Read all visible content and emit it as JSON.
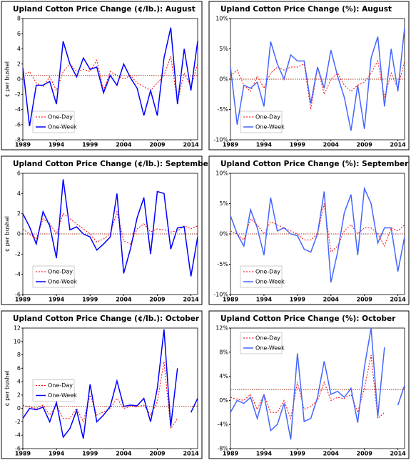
{
  "chart_data": [
    {
      "type": "line",
      "title": "Upland Cotton Price Change (¢/lb.): August",
      "y_label": "¢ per bushel",
      "x": [
        1989,
        1990,
        1991,
        1992,
        1993,
        1994,
        1995,
        1996,
        1997,
        1998,
        1999,
        2000,
        2001,
        2002,
        2003,
        2004,
        2005,
        2006,
        2007,
        2008,
        2009,
        2010,
        2011,
        2012,
        2013,
        2014,
        2015
      ],
      "xlim": [
        1989,
        2015
      ],
      "xticks": [
        1989,
        1994,
        1999,
        2004,
        2009,
        2014
      ],
      "ylim": [
        -8,
        8
      ],
      "yticks": [
        -8,
        -6,
        -4,
        -2,
        0,
        2,
        4,
        6,
        8
      ],
      "reference_line": 0.5,
      "legend": "lower left",
      "series": [
        {
          "name": "One-Day",
          "color": "#ff0000",
          "values": [
            0.5,
            1,
            -0.5,
            -1,
            0.3,
            -1.5,
            1,
            2,
            1,
            1.3,
            1,
            2.5,
            -1.5,
            1,
            0.5,
            0,
            0.5,
            -0.5,
            -1,
            -1.5,
            -0.5,
            0.5,
            3,
            -3,
            0.8,
            -1,
            2
          ]
        },
        {
          "name": "One-Week",
          "color": "#0000ff",
          "values": [
            1.5,
            -6.2,
            -0.8,
            -0.8,
            -0.3,
            -3.3,
            5,
            2,
            0.3,
            2.8,
            1.3,
            1.6,
            -1.8,
            0.5,
            -0.8,
            2,
            0.2,
            -1.2,
            -4.8,
            -1.5,
            -4.8,
            2.8,
            6.8,
            -3.3,
            4,
            -1.5,
            5
          ]
        }
      ]
    },
    {
      "type": "line",
      "title": "Upland Cotton Price Change (%): August",
      "x": [
        1989,
        1990,
        1991,
        1992,
        1993,
        1994,
        1995,
        1996,
        1997,
        1998,
        1999,
        2000,
        2001,
        2002,
        2003,
        2004,
        2005,
        2006,
        2007,
        2008,
        2009,
        2010,
        2011,
        2012,
        2013,
        2014,
        2015
      ],
      "xlim": [
        1989,
        2015
      ],
      "xticks": [
        1989,
        1994,
        1999,
        2004,
        2009,
        2014
      ],
      "ylim": [
        -10,
        10
      ],
      "yticks": [
        {
          "value": -10,
          "label": "-10%"
        },
        {
          "value": -5,
          "label": "-5%"
        },
        {
          "value": 0,
          "label": "0%"
        },
        {
          "value": 5,
          "label": "5%"
        },
        {
          "value": 10,
          "label": "10%"
        }
      ],
      "reference_line": 0,
      "legend": "lower left",
      "series": [
        {
          "name": "One-Day",
          "color": "#ff0000",
          "values": [
            0.5,
            1.5,
            -1,
            -2,
            0.5,
            -1.5,
            1,
            2,
            1.5,
            2,
            2,
            2.5,
            -5,
            2,
            -2.5,
            0,
            1,
            -1,
            -2,
            -1,
            -0.5,
            1,
            3,
            -3,
            1,
            -1.5,
            3
          ]
        },
        {
          "name": "One-Week",
          "color": "#4466ff",
          "values": [
            2,
            -7.5,
            -1,
            -1.5,
            -0.5,
            -4.5,
            6.2,
            2.5,
            0,
            4,
            3,
            3,
            -4,
            2,
            -1.5,
            4.8,
            0.5,
            -3,
            -8.5,
            -1,
            -8.2,
            3.5,
            7,
            -4.5,
            5,
            -2,
            8.5
          ]
        }
      ]
    },
    {
      "type": "line",
      "title": "Upland Cotton Price Change (¢/lb.): September",
      "y_label": "¢ per bushel",
      "x": [
        1989,
        1990,
        1991,
        1992,
        1993,
        1994,
        1995,
        1996,
        1997,
        1998,
        1999,
        2000,
        2001,
        2002,
        2003,
        2004,
        2005,
        2006,
        2007,
        2008,
        2009,
        2010,
        2011,
        2012,
        2013,
        2014,
        2015
      ],
      "xlim": [
        1989,
        2015
      ],
      "xticks": [
        1989,
        1994,
        1999,
        2004,
        2009,
        2014
      ],
      "ylim": [
        -6,
        6
      ],
      "yticks": [
        -6,
        -4,
        -2,
        0,
        2,
        4,
        6
      ],
      "reference_line": 0,
      "legend": "lower left",
      "series": [
        {
          "name": "One-Day",
          "color": "#ff0000",
          "values": [
            0.5,
            0,
            -0.5,
            1.5,
            1,
            0,
            2,
            1.5,
            1,
            0.5,
            0,
            -0.8,
            -0.5,
            0,
            2.2,
            -0.7,
            -1,
            0.5,
            1,
            0.2,
            0.5,
            0.4,
            0.2,
            0.3,
            0.8,
            0.5,
            0.8
          ]
        },
        {
          "name": "One-Week",
          "color": "#0000ff",
          "values": [
            2,
            0.7,
            -1,
            2.2,
            0.8,
            -2.4,
            5.4,
            0.4,
            0.7,
            0,
            -0.3,
            -1.6,
            -1,
            -0.3,
            4,
            -3.9,
            -1.5,
            1.6,
            3.6,
            -2,
            4.2,
            4,
            -1.5,
            0.6,
            0.7,
            -4.2,
            -0.3
          ]
        }
      ]
    },
    {
      "type": "line",
      "title": "Upland Cotton Price Change (%): September",
      "x": [
        1989,
        1990,
        1991,
        1992,
        1993,
        1994,
        1995,
        1996,
        1997,
        1998,
        1999,
        2000,
        2001,
        2002,
        2003,
        2004,
        2005,
        2006,
        2007,
        2008,
        2009,
        2010,
        2011,
        2012,
        2013,
        2014,
        2015
      ],
      "xlim": [
        1989,
        2015
      ],
      "xticks": [
        1989,
        1994,
        1999,
        2004,
        2009,
        2014
      ],
      "ylim": [
        -10,
        10
      ],
      "yticks": [
        {
          "value": -10,
          "label": "-10%"
        },
        {
          "value": -5,
          "label": "-5%"
        },
        {
          "value": 0,
          "label": "0%"
        },
        {
          "value": 5,
          "label": "5%"
        },
        {
          "value": 10,
          "label": "10%"
        }
      ],
      "reference_line": 0,
      "legend": "lower left",
      "series": [
        {
          "name": "One-Day",
          "color": "#ff0000",
          "values": [
            0.5,
            0,
            -1,
            2.5,
            1.5,
            0,
            2,
            1.5,
            1,
            0.5,
            0,
            -1,
            -1,
            0,
            5,
            -3,
            -2,
            0.5,
            1.5,
            0,
            1,
            1,
            0,
            -2,
            1,
            0.5,
            1.5
          ]
        },
        {
          "name": "One-Week",
          "color": "#4466ff",
          "values": [
            3,
            0,
            -2,
            4,
            1,
            -3.5,
            6,
            0.5,
            1,
            0,
            -0.3,
            -2.5,
            -3,
            0,
            7,
            -8,
            -3,
            3.5,
            6.5,
            -3.5,
            7.5,
            5,
            -1.5,
            1,
            1,
            -6.2,
            -0.5
          ]
        }
      ]
    },
    {
      "type": "line",
      "title": "Upland Cotton Price Change (¢/lb.): October",
      "y_label": "¢ per bushel",
      "x": [
        1989,
        1990,
        1991,
        1992,
        1993,
        1994,
        1995,
        1996,
        1997,
        1998,
        1999,
        2000,
        2001,
        2002,
        2003,
        2004,
        2005,
        2006,
        2007,
        2008,
        2009,
        2010,
        2011,
        2012,
        2013,
        2014,
        2015
      ],
      "xlim": [
        1989,
        2015
      ],
      "xticks": [
        1989,
        1994,
        1999,
        2004,
        2009,
        2014
      ],
      "ylim": [
        -6,
        12
      ],
      "yticks": [
        -6,
        -4,
        -2,
        0,
        2,
        4,
        6,
        8,
        10,
        12
      ],
      "reference_line": 0.3,
      "legend": "middle left",
      "series": [
        {
          "name": "One-Day",
          "color": "#ff0000",
          "values": [
            0.5,
            0.2,
            0,
            0.5,
            -1,
            0.5,
            -1.5,
            -1.5,
            0,
            -2,
            2,
            -1,
            -0.5,
            0,
            1.5,
            0,
            0.3,
            0.2,
            0.5,
            -1,
            1,
            7,
            -3,
            -1.5,
            null,
            null,
            null
          ]
        },
        {
          "name": "One-Week",
          "color": "#0000ff",
          "values": [
            -1.5,
            0,
            -0.2,
            0.2,
            -2,
            0.9,
            -4.3,
            -3,
            -0.3,
            -4.5,
            3.6,
            -2,
            -1,
            0.3,
            4.1,
            0.3,
            0.5,
            0.4,
            1.5,
            -2,
            3,
            11.8,
            -2.7,
            6,
            null,
            -0.6,
            1.5
          ]
        }
      ]
    },
    {
      "type": "line",
      "title": "Upland Cotton Price Change (%): October",
      "x": [
        1989,
        1990,
        1991,
        1992,
        1993,
        1994,
        1995,
        1996,
        1997,
        1998,
        1999,
        2000,
        2001,
        2002,
        2003,
        2004,
        2005,
        2006,
        2007,
        2008,
        2009,
        2010,
        2011,
        2012,
        2013,
        2014,
        2015
      ],
      "xlim": [
        1989,
        2015
      ],
      "xticks": [
        1989,
        1994,
        1999,
        2004,
        2009,
        2014
      ],
      "ylim": [
        -8,
        12
      ],
      "yticks": [
        {
          "value": -8,
          "label": "-8%"
        },
        {
          "value": -4,
          "label": "-4%"
        },
        {
          "value": 0,
          "label": "0%"
        },
        {
          "value": 4,
          "label": "4%"
        },
        {
          "value": 8,
          "label": "8%"
        },
        {
          "value": 12,
          "label": "12%"
        }
      ],
      "reference_line": 1.8,
      "legend": "upper left",
      "series": [
        {
          "name": "One-Day",
          "color": "#ff0000",
          "values": [
            0.5,
            0.2,
            0,
            1,
            -1.5,
            1,
            -2,
            -2,
            0,
            -3,
            3,
            -1.5,
            -1,
            0,
            3,
            0,
            0.5,
            0.3,
            1,
            -2,
            2,
            7.5,
            -3,
            -2,
            null,
            null,
            null
          ]
        },
        {
          "name": "One-Week",
          "color": "#4466ff",
          "values": [
            -2,
            0,
            -0.5,
            0.5,
            -3,
            1,
            -5,
            -4,
            -0.5,
            -6.5,
            7.8,
            -3.5,
            -3,
            0.5,
            6.5,
            1,
            1.5,
            0.5,
            2,
            -3.7,
            5.5,
            12,
            -2.7,
            8.8,
            null,
            -0.8,
            2.5
          ]
        }
      ]
    }
  ]
}
